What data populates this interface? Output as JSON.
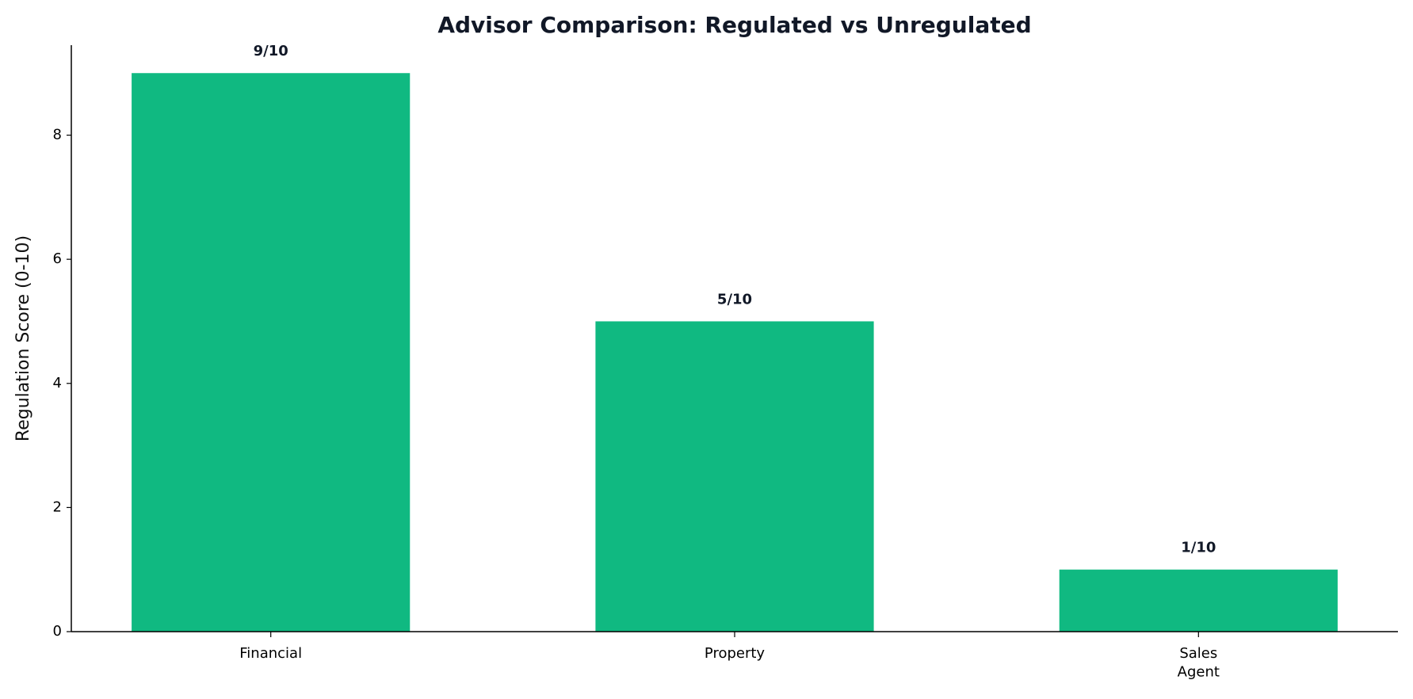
{
  "chart_data": {
    "type": "bar",
    "title": "Advisor Comparison: Regulated vs Unregulated",
    "y_label": "Regulation Score (0-10)",
    "categories": [
      "Financial",
      "Property",
      "Sales\nAgent"
    ],
    "values": [
      9,
      5,
      1
    ],
    "value_labels": [
      "9/10",
      "5/10",
      "1/10"
    ],
    "color": "#10b981",
    "ylim": [
      0,
      9.45
    ],
    "yticks": [
      0,
      2,
      4,
      6,
      8
    ],
    "grid": false
  }
}
